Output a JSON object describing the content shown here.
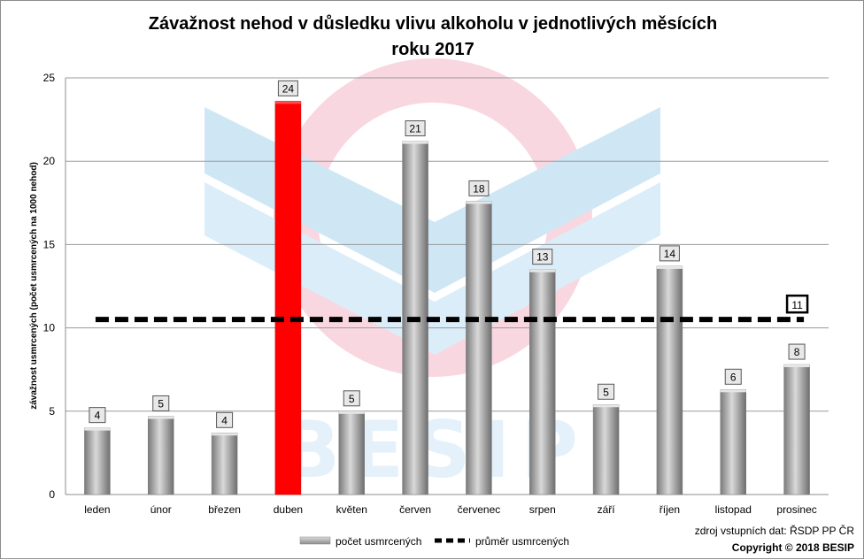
{
  "chart_data": {
    "type": "bar",
    "title_line1": "Závažnost nehod v důsledku vlivu alkoholu v jednotlivých měsících",
    "title_line2": "roku 2017",
    "ylabel": "závažnost usmrcených (počet usmrcených na 1000 nehod)",
    "xlabel": "",
    "ylim": [
      0,
      25
    ],
    "yticks": [
      0,
      5,
      10,
      15,
      20,
      25
    ],
    "grid": true,
    "categories": [
      "leden",
      "únor",
      "březen",
      "duben",
      "květen",
      "červen",
      "červenec",
      "srpen",
      "září",
      "říjen",
      "listopad",
      "prosinec"
    ],
    "series": [
      {
        "name": "počet usmrcených",
        "values": [
          4.0,
          4.7,
          3.7,
          23.6,
          5.0,
          21.2,
          17.6,
          13.5,
          5.4,
          13.7,
          6.3,
          7.8
        ],
        "labels": [
          "4",
          "5",
          "4",
          "24",
          "5",
          "21",
          "18",
          "13",
          "5",
          "14",
          "6",
          "8"
        ],
        "color": "#a6a6a6",
        "highlight_index": 3,
        "highlight_color": "#ff0000"
      },
      {
        "name": "průměr usmrcených",
        "type": "line",
        "value": 10.5,
        "label": "11",
        "color": "#000000",
        "style": "dashed"
      }
    ],
    "legend_position": "bottom"
  },
  "watermark": {
    "text": "BESIP",
    "colors": [
      "#add8f0",
      "#f7c6d2"
    ]
  },
  "source_text": "zdroj vstupních dat: ŘSDP PP ČR",
  "copyright_text": "Copyright © 2018 BESIP"
}
